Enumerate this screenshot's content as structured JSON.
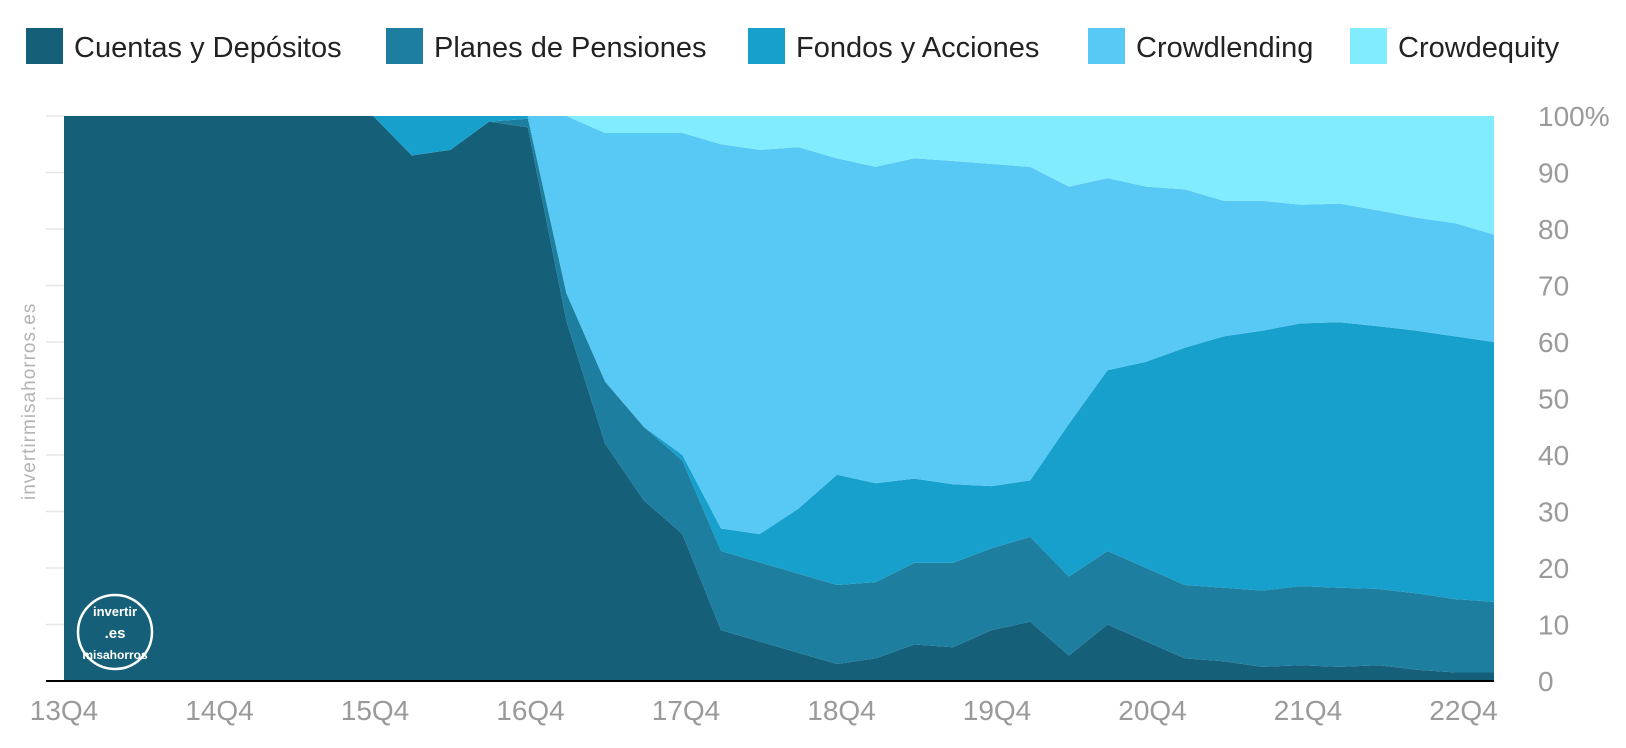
{
  "chart_data": {
    "type": "area",
    "stacked": true,
    "percent": true,
    "legend_position": "top",
    "x": [
      "13Q4",
      "14Q1",
      "14Q2",
      "14Q3",
      "14Q4",
      "15Q1",
      "15Q2",
      "15Q3",
      "15Q4",
      "16Q1",
      "16Q2",
      "16Q3",
      "16Q4",
      "17Q1",
      "17Q2",
      "17Q3",
      "17Q4",
      "18Q1",
      "18Q2",
      "18Q3",
      "18Q4",
      "19Q1",
      "19Q2",
      "19Q3",
      "19Q4",
      "20Q1",
      "20Q2",
      "20Q3",
      "20Q4",
      "21Q1",
      "21Q2",
      "21Q3",
      "21Q4",
      "22Q1",
      "22Q2",
      "22Q3",
      "22Q4",
      "23Q1"
    ],
    "x_tick_labels": [
      "13Q4",
      "14Q4",
      "15Q4",
      "16Q4",
      "17Q4",
      "18Q4",
      "19Q4",
      "20Q4",
      "21Q4",
      "22Q4"
    ],
    "y_ticks": [
      "0",
      "10",
      "20",
      "30",
      "40",
      "50",
      "60",
      "70",
      "80",
      "90",
      "100%"
    ],
    "ylim": [
      0,
      100
    ],
    "series": [
      {
        "name": "Cuentas y Depósitos",
        "color": "#155f78",
        "values": [
          100,
          100,
          100,
          100,
          100,
          100,
          100,
          100,
          100,
          93,
          94,
          99,
          98,
          65,
          42,
          32,
          26,
          9,
          7,
          5,
          3,
          4,
          6.5,
          6,
          9,
          10.5,
          4.5,
          10,
          7,
          4,
          3.5,
          2.5,
          2.8,
          2.5,
          2.8,
          2,
          1.5,
          1.5
        ]
      },
      {
        "name": "Planes de Pensiones",
        "color": "#1d7e9f",
        "values": [
          0,
          0,
          0,
          0,
          0,
          0,
          0,
          0,
          0,
          0,
          0,
          0,
          1.5,
          5,
          11,
          13,
          13,
          14,
          14,
          14,
          14,
          13.5,
          14.5,
          15,
          14.5,
          15,
          14,
          13,
          13,
          13,
          13,
          13.5,
          14,
          14,
          13.5,
          13.5,
          13,
          12.5
        ]
      },
      {
        "name": "Fondos y Acciones",
        "color": "#18a0cc",
        "values": [
          0,
          0,
          0,
          0,
          0,
          0,
          0,
          0,
          0,
          7,
          6,
          1,
          0.5,
          0,
          0,
          0,
          1,
          4,
          5,
          11.5,
          19.5,
          17.5,
          15,
          14,
          11,
          10,
          27,
          32,
          36.5,
          42,
          44.5,
          46,
          46.5,
          47,
          46.5,
          46.5,
          46.5,
          46
        ]
      },
      {
        "name": "Crowdlending",
        "color": "#58c8f5",
        "values": [
          0,
          0,
          0,
          0,
          0,
          0,
          0,
          0,
          0,
          0,
          0,
          0,
          0,
          32,
          44,
          52,
          57,
          68,
          68,
          64,
          56,
          56,
          57,
          57.5,
          57,
          55.5,
          42,
          34,
          31,
          28,
          24,
          23,
          21,
          21,
          20.5,
          20,
          20,
          19
        ]
      },
      {
        "name": "Crowdequity",
        "color": "#80ecfe",
        "values": [
          0,
          0,
          0,
          0,
          0,
          0,
          0,
          0,
          0,
          0,
          0,
          0,
          0,
          0,
          3,
          3,
          3,
          5,
          6,
          5.5,
          7.5,
          9,
          7.5,
          8,
          8.5,
          9,
          12.5,
          11,
          12.5,
          13,
          15,
          15,
          15.7,
          15.5,
          16.7,
          18,
          19,
          21
        ]
      }
    ]
  },
  "watermark": {
    "side_text": "invertirmisahorros.es",
    "logo_top": "invertir",
    "logo_mid": ".es",
    "logo_bottom": "misahorros"
  }
}
